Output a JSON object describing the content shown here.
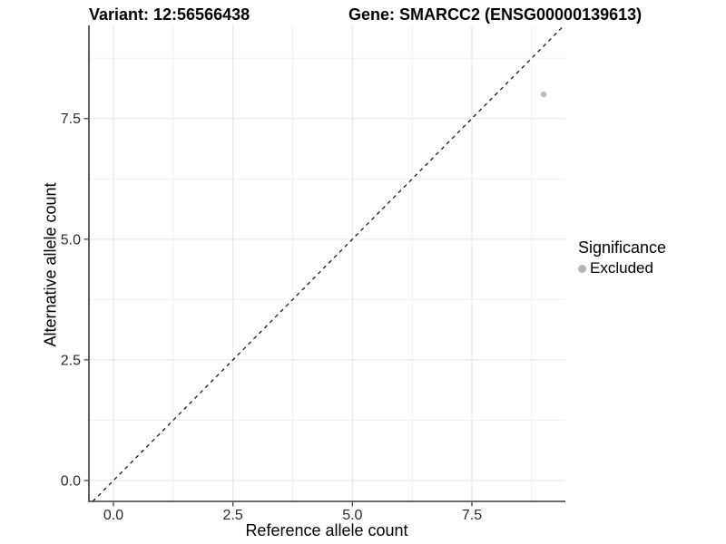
{
  "chart_data": {
    "type": "scatter",
    "titles": {
      "variant": "Variant: 12:56566438",
      "gene": "Gene: SMARCC2 (ENSG00000139613)"
    },
    "xlabel": "Reference allele count",
    "ylabel": "Alternative allele count",
    "x_ticks": [
      "0.0",
      "2.5",
      "5.0",
      "7.5"
    ],
    "y_ticks": [
      "0.0",
      "2.5",
      "5.0",
      "7.5"
    ],
    "x_tick_values": [
      0,
      2.5,
      5,
      7.5
    ],
    "y_tick_values": [
      0,
      2.5,
      5,
      7.5
    ],
    "minor_tick_values": [
      1.25,
      3.75,
      6.25,
      8.75
    ],
    "xlim": [
      -0.513,
      9.456
    ],
    "ylim": [
      -0.432,
      9.43
    ],
    "grid": "major+minor",
    "reference_line": {
      "type": "identity y=x",
      "style": "dashed",
      "color": "#1a1a1a"
    },
    "series": [
      {
        "name": "Excluded",
        "color": "#bcbcbc",
        "points": [
          {
            "x": 9,
            "y": 8
          }
        ]
      }
    ],
    "legend": {
      "title": "Significance",
      "position": "right",
      "items": [
        {
          "label": "Excluded",
          "color": "#b5b5b5"
        }
      ]
    },
    "colors": {
      "background": "#ffffff",
      "axis_line": "#383838",
      "tick_mark": "#333333",
      "tick_label": "#2b2b2b",
      "grid_major": "#e6e6e6",
      "grid_minor": "#f2f2f2"
    }
  }
}
